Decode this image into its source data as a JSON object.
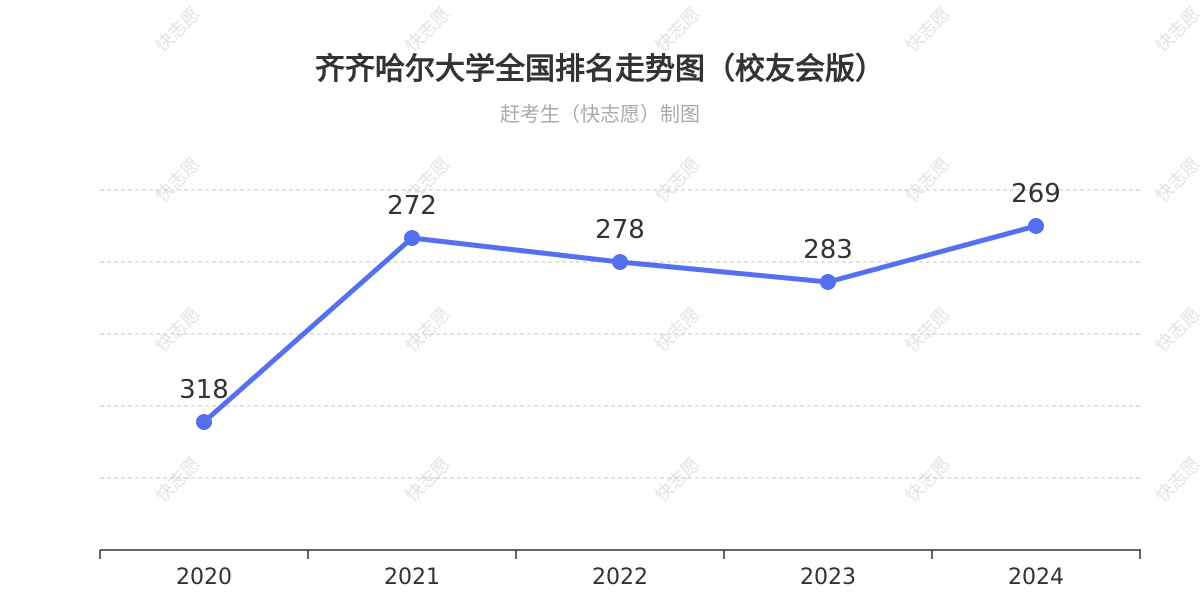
{
  "watermark_text": "快志愿",
  "chart_data": {
    "type": "line",
    "title": "齐齐哈尔大学全国排名走势图（校友会版）",
    "subtitle": "赶考生（快志愿）制图",
    "categories": [
      "2020",
      "2021",
      "2022",
      "2023",
      "2024"
    ],
    "series": [
      {
        "values": [
          318,
          272,
          278,
          283,
          269
        ],
        "color": "#5470f0"
      }
    ],
    "inverse_y": true,
    "ylim": [
      260,
      350
    ],
    "grid": true,
    "xlabel": "",
    "ylabel": ""
  }
}
